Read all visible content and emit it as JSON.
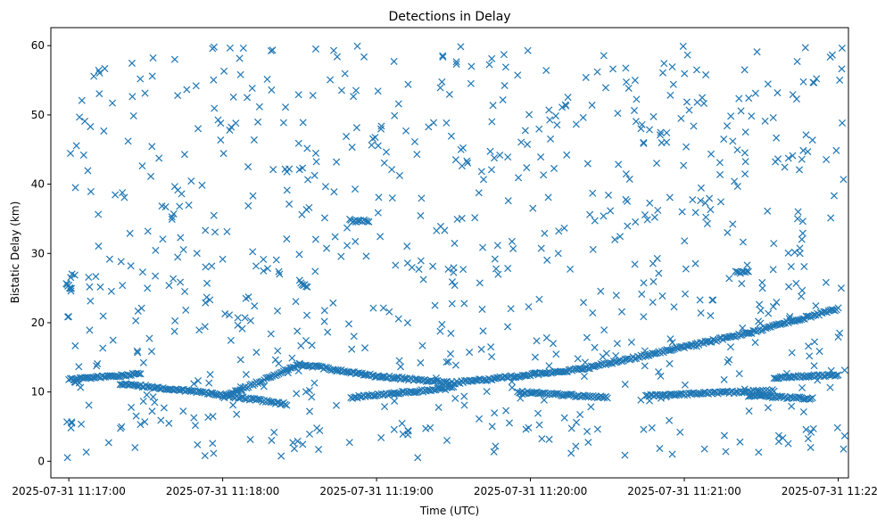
{
  "chart_data": {
    "type": "scatter",
    "title": "Detections in Delay",
    "xlabel": "Time (UTC)",
    "ylabel": "Bistatic Delay (km)",
    "x_axis_type": "datetime",
    "xlim": [
      "2025-07-31 11:16:53",
      "2025-07-31 11:22:04"
    ],
    "ylim": [
      -2.4,
      62.6
    ],
    "x_ticks": [
      "2025-07-31 11:17:00",
      "2025-07-31 11:18:00",
      "2025-07-31 11:19:00",
      "2025-07-31 11:20:00",
      "2025-07-31 11:21:00",
      "2025-07-31 11:22:00"
    ],
    "y_ticks": [
      0,
      10,
      20,
      30,
      40,
      50,
      60
    ],
    "marker": "x",
    "color": "#1f77b4",
    "grid": false,
    "legend": "none",
    "series": [
      {
        "name": "",
        "tracks": [
          {
            "x_start": "2025-07-31 11:17:00",
            "x_end": "2025-07-31 11:17:28",
            "y_start": 11.8,
            "y_end": 12.6
          },
          {
            "x_start": "2025-07-31 11:17:20",
            "x_end": "2025-07-31 11:17:56",
            "y_start": 11.2,
            "y_end": 9.8
          },
          {
            "x_start": "2025-07-31 11:17:56",
            "x_end": "2025-07-31 11:18:25",
            "y_start": 9.8,
            "y_end": 8.2
          },
          {
            "x_start": "2025-07-31 11:18:00",
            "x_end": "2025-07-31 11:18:30",
            "y_start": 9.2,
            "y_end": 14.0
          },
          {
            "x_start": "2025-07-31 11:18:30",
            "x_end": "2025-07-31 11:19:00",
            "y_start": 14.0,
            "y_end": 12.3
          },
          {
            "x_start": "2025-07-31 11:19:00",
            "x_end": "2025-07-31 11:19:30",
            "y_start": 12.3,
            "y_end": 11.3
          },
          {
            "x_start": "2025-07-31 11:19:30",
            "x_end": "2025-07-31 11:20:20",
            "y_start": 11.3,
            "y_end": 13.3
          },
          {
            "x_start": "2025-07-31 11:20:20",
            "x_end": "2025-07-31 11:21:25",
            "y_start": 13.3,
            "y_end": 18.5
          },
          {
            "x_start": "2025-07-31 11:21:25",
            "x_end": "2025-07-31 11:22:00",
            "y_start": 18.5,
            "y_end": 22.0
          },
          {
            "x_start": "2025-07-31 11:18:50",
            "x_end": "2025-07-31 11:19:30",
            "y_start": 9.2,
            "y_end": 10.6
          },
          {
            "x_start": "2025-07-31 11:19:55",
            "x_end": "2025-07-31 11:20:30",
            "y_start": 10.0,
            "y_end": 9.2
          },
          {
            "x_start": "2025-07-31 11:20:45",
            "x_end": "2025-07-31 11:21:35",
            "y_start": 9.5,
            "y_end": 10.2
          },
          {
            "x_start": "2025-07-31 11:21:35",
            "x_end": "2025-07-31 11:22:00",
            "y_start": 12.0,
            "y_end": 12.5
          },
          {
            "x_start": "2025-07-31 11:21:25",
            "x_end": "2025-07-31 11:21:50",
            "y_start": 9.5,
            "y_end": 9.0
          },
          {
            "x_start": "2025-07-31 11:16:59",
            "x_end": "2025-07-31 11:17:01",
            "y_start": 25.5,
            "y_end": 25.0
          },
          {
            "x_start": "2025-07-31 11:18:30",
            "x_end": "2025-07-31 11:18:33",
            "y_start": 26.0,
            "y_end": 25.0
          },
          {
            "x_start": "2025-07-31 11:18:50",
            "x_end": "2025-07-31 11:18:57",
            "y_start": 34.7,
            "y_end": 34.7
          },
          {
            "x_start": "2025-07-31 11:21:20",
            "x_end": "2025-07-31 11:21:25",
            "y_start": 27.3,
            "y_end": 27.3
          }
        ],
        "noise_points": 800,
        "noise_x_range": [
          "2025-07-31 11:16:59",
          "2025-07-31 11:22:04"
        ],
        "noise_y_range": [
          0.5,
          60.0
        ]
      }
    ]
  }
}
